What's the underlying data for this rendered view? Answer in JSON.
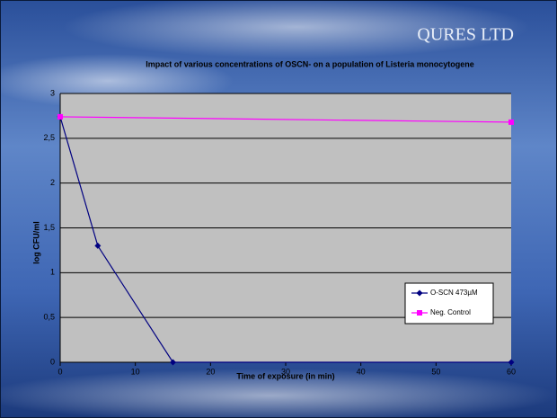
{
  "logo": "QURES LTD",
  "chart_data": {
    "type": "line",
    "title": "Impact of various concentrations of OSCN- on a population of Listeria monocytogene",
    "x_label": "Time of exposure (in min)",
    "y_label": "log CFU/ml",
    "xlim": [
      0,
      60
    ],
    "xticks": [
      0,
      10,
      20,
      30,
      40,
      50,
      60
    ],
    "ylim": [
      0,
      3
    ],
    "yticks": [
      0,
      {
        "value": 0.5,
        "label": "0,5"
      },
      1,
      {
        "value": 1.5,
        "label": "1,5"
      },
      2,
      {
        "value": 2.5,
        "label": "2,5"
      },
      3
    ],
    "grid": true,
    "legend": "lower right",
    "series": [
      {
        "name": "O-SCN 473µM",
        "color": "#000080",
        "x": [
          0,
          5,
          15,
          60
        ],
        "values": [
          2.74,
          1.3,
          0,
          0
        ]
      },
      {
        "name": "Neg. Control",
        "color": "#ff00ff",
        "x": [
          0,
          60
        ],
        "values": [
          2.74,
          2.68
        ]
      }
    ]
  }
}
